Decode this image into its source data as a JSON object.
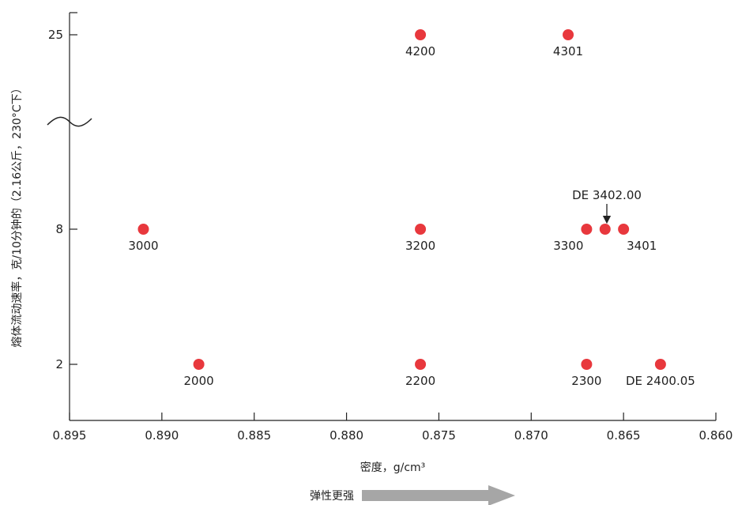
{
  "chart_data": {
    "type": "scatter",
    "xlabel": "密度，g/cm³",
    "ylabel": "熔体流动速率，克/10分钟的（2.16公斤，230°C下）",
    "xlim": [
      0.895,
      0.86
    ],
    "x_ticks": [
      "0.895",
      "0.890",
      "0.885",
      "0.880",
      "0.875",
      "0.870",
      "0.865",
      "0.860"
    ],
    "y_ticks": [
      "2",
      "8",
      "25"
    ],
    "y_scale": "broken (nonlinear, axis break between 8 and 25)",
    "grid": false,
    "points": [
      {
        "label": "3000",
        "x": 0.891,
        "y": 8
      },
      {
        "label": "3200",
        "x": 0.876,
        "y": 8
      },
      {
        "label": "3300",
        "x": 0.867,
        "y": 8
      },
      {
        "label": "",
        "x": 0.866,
        "y": 8
      },
      {
        "label": "3401",
        "x": 0.865,
        "y": 8
      },
      {
        "label": "2000",
        "x": 0.888,
        "y": 2
      },
      {
        "label": "2200",
        "x": 0.876,
        "y": 2
      },
      {
        "label": "2300",
        "x": 0.867,
        "y": 2
      },
      {
        "label": "DE 2400.05",
        "x": 0.863,
        "y": 2
      },
      {
        "label": "4200",
        "x": 0.876,
        "y": 25
      },
      {
        "label": "4301",
        "x": 0.868,
        "y": 25
      }
    ],
    "annotations": [
      {
        "text": "DE 3402.00",
        "x": 0.866,
        "y": 8
      }
    ],
    "arrow_note": "弹性更强"
  }
}
